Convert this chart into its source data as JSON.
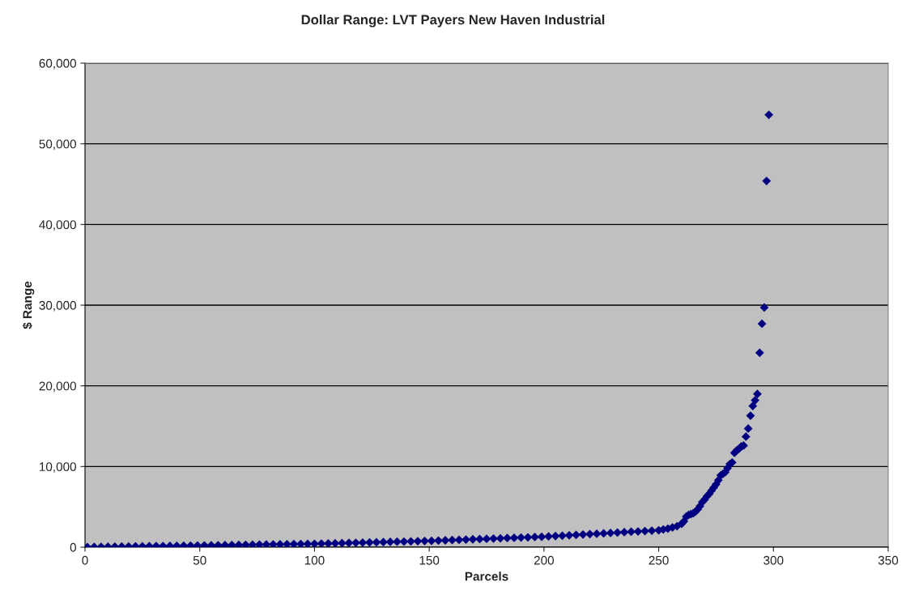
{
  "chart_data": {
    "type": "scatter",
    "title": "Dollar Range: LVT Payers New Haven Industrial",
    "xlabel": "Parcels",
    "ylabel": "$ Range",
    "x": [
      1,
      4,
      7,
      10,
      13,
      16,
      19,
      22,
      25,
      28,
      31,
      34,
      37,
      40,
      43,
      46,
      49,
      52,
      55,
      58,
      61,
      64,
      67,
      70,
      73,
      76,
      79,
      82,
      85,
      88,
      91,
      94,
      97,
      100,
      103,
      106,
      109,
      112,
      115,
      118,
      121,
      124,
      127,
      130,
      133,
      136,
      139,
      142,
      145,
      148,
      151,
      154,
      157,
      160,
      163,
      166,
      169,
      172,
      175,
      178,
      181,
      184,
      187,
      190,
      193,
      196,
      199,
      202,
      205,
      208,
      211,
      214,
      217,
      220,
      223,
      226,
      229,
      232,
      235,
      238,
      241,
      244,
      247,
      250,
      252,
      254,
      256,
      258,
      260,
      261,
      262,
      263,
      264,
      265,
      266,
      267,
      268,
      269,
      270,
      271,
      272,
      273,
      274,
      275,
      276,
      277,
      278,
      279,
      280,
      281,
      282,
      283,
      284,
      285,
      286,
      287,
      288,
      289,
      290,
      291,
      292,
      293,
      294,
      295,
      296,
      297,
      298
    ],
    "series": [
      {
        "color": "#000080",
        "values": [
          24,
          35,
          47,
          58,
          69,
          81,
          92,
          104,
          115,
          126,
          138,
          149,
          161,
          172,
          183,
          195,
          206,
          218,
          231,
          244,
          256,
          269,
          281,
          294,
          307,
          319,
          332,
          344,
          357,
          370,
          382,
          395,
          407,
          420,
          442,
          463,
          485,
          506,
          528,
          550,
          571,
          593,
          614,
          636,
          658,
          679,
          701,
          722,
          744,
          766,
          790,
          822,
          853,
          884,
          915,
          946,
          978,
          1009,
          1040,
          1071,
          1102,
          1134,
          1165,
          1196,
          1227,
          1258,
          1290,
          1332,
          1380,
          1428,
          1476,
          1524,
          1572,
          1620,
          1668,
          1716,
          1764,
          1812,
          1860,
          1908,
          1956,
          2004,
          2052,
          2100,
          2200,
          2300,
          2450,
          2600,
          2900,
          3200,
          3800,
          4000,
          4100,
          4200,
          4400,
          4700,
          5100,
          5600,
          5900,
          6300,
          6600,
          7000,
          7400,
          7800,
          8300,
          8900,
          9100,
          9300,
          9800,
          10300,
          10500,
          11700,
          12000,
          12200,
          12500,
          12600,
          13700,
          14700,
          16300,
          17500,
          18200,
          19000,
          24100,
          27700,
          29700,
          45400,
          53600
        ]
      }
    ],
    "marker": "diamond",
    "grid": "y",
    "legend": false,
    "xlim": [
      0,
      350
    ],
    "xticks": [
      0,
      50,
      100,
      150,
      200,
      250,
      300,
      350
    ],
    "ylim": [
      0,
      60000
    ],
    "yticks": [
      {
        "value": 0,
        "label": "0"
      },
      {
        "value": 10000,
        "label": "10,000"
      },
      {
        "value": 20000,
        "label": "20,000"
      },
      {
        "value": 30000,
        "label": "30,000"
      },
      {
        "value": 40000,
        "label": "40,000"
      },
      {
        "value": 50000,
        "label": "50,000"
      },
      {
        "value": 60000,
        "label": "60,000"
      }
    ]
  }
}
